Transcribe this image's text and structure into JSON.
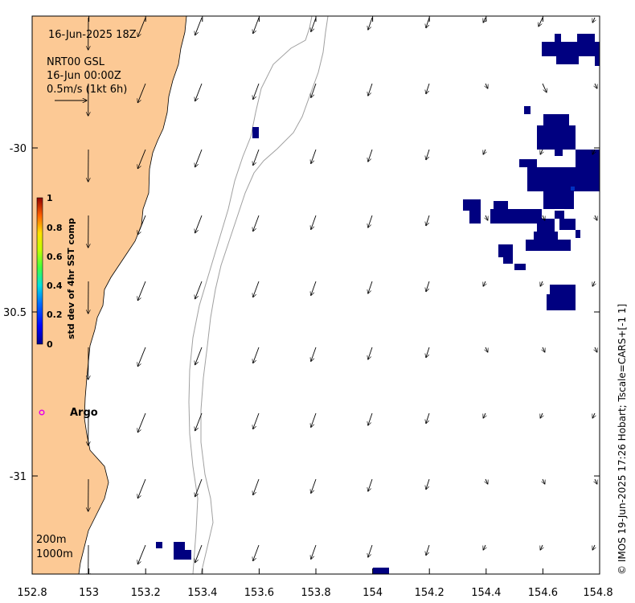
{
  "header": {
    "datetime": "16-Jun-2025 18Z",
    "product": "NRT00 GSL",
    "time": "16-Jun 00:00Z",
    "scale_label": "0.5m/s (1kt 6h)"
  },
  "colorbar": {
    "label": "std dev of 4hr SST comp",
    "ticks": [
      "1",
      "0.8",
      "0.6",
      "0.4",
      "0.2",
      "0"
    ]
  },
  "axes": {
    "x_ticks": [
      "152.8",
      "153",
      "153.2",
      "153.4",
      "153.6",
      "153.8",
      "154",
      "154.2",
      "154.4",
      "154.6",
      "154.8"
    ],
    "y_ticks": [
      "-30",
      "30.5",
      "-31"
    ]
  },
  "bathymetry": {
    "label_200": "200m",
    "label_1000": "1000m"
  },
  "argo": {
    "label": "Argo",
    "color": "#e600e6"
  },
  "credit": "© IMOS 19-Jun-2025 17:26 Hobart; Tscale=CARS+[-1 1]",
  "colors": {
    "land": "#fcc995",
    "sst_patch": "#000080",
    "contour": "#a0a0a0"
  }
}
